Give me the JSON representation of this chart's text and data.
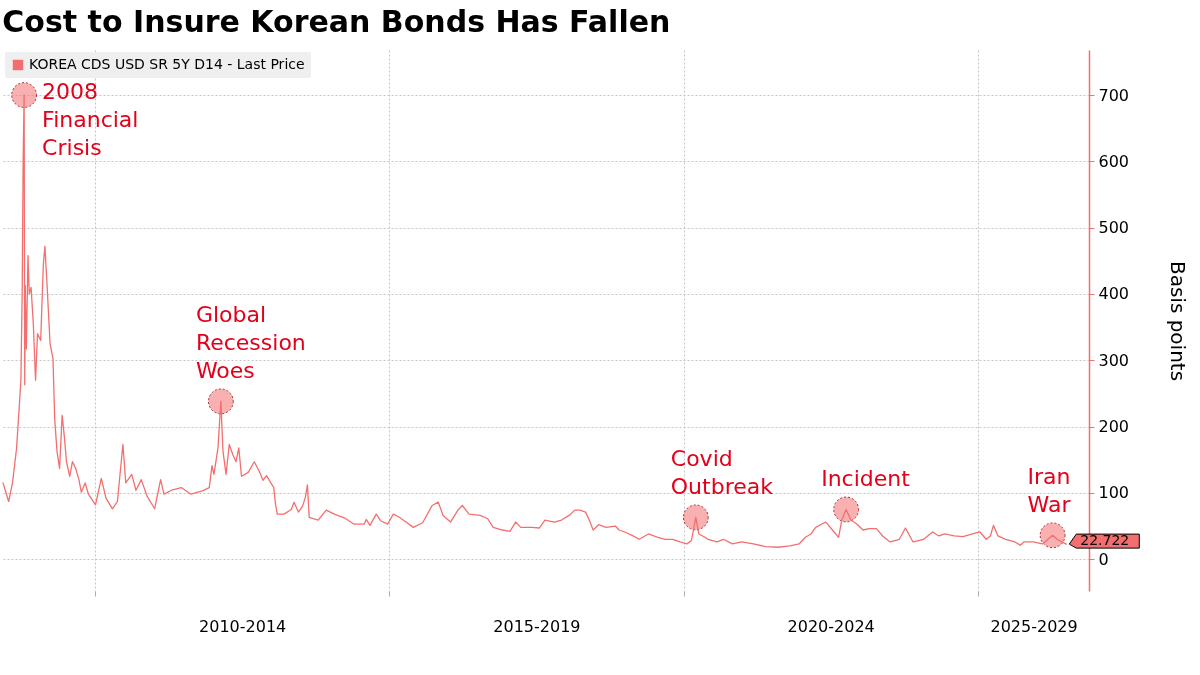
{
  "chart_data": {
    "type": "line",
    "title": "Cost to Insure Korean Bonds Has Fallen",
    "ylabel": "Basis points",
    "x": [
      "2008-06-09",
      "2008-07-14",
      "2008-08-07",
      "2008-09-01",
      "2008-09-20",
      "2008-09-28",
      "2008-10-06",
      "2008-10-12",
      "2008-10-18",
      "2008-10-22",
      "2008-10-25",
      "2008-11-01",
      "2008-11-11",
      "2008-11-19",
      "2008-11-30",
      "2008-12-14",
      "2008-12-28",
      "2009-01-09",
      "2009-01-29",
      "2009-02-14",
      "2009-02-24",
      "2009-03-08",
      "2009-03-28",
      "2009-04-15",
      "2009-04-26",
      "2009-05-10",
      "2009-05-26",
      "2009-06-11",
      "2009-06-25",
      "2009-07-08",
      "2009-07-28",
      "2009-08-14",
      "2009-09-03",
      "2009-09-23",
      "2009-10-08",
      "2009-11-01",
      "2009-11-21",
      "2010-01-04",
      "2010-02-09",
      "2010-03-10",
      "2010-04-19",
      "2010-05-20",
      "2010-06-23",
      "2010-07-11",
      "2010-08-17",
      "2010-09-12",
      "2010-10-15",
      "2010-11-20",
      "2011-01-06",
      "2011-02-12",
      "2011-03-05",
      "2011-04-22",
      "2011-06-20",
      "2011-08-19",
      "2011-10-29",
      "2011-12-11",
      "2011-12-28",
      "2012-01-09",
      "2012-02-03",
      "2012-02-21",
      "2012-03-05",
      "2012-03-24",
      "2012-04-13",
      "2012-05-06",
      "2012-05-25",
      "2012-06-11",
      "2012-06-28",
      "2012-08-09",
      "2012-09-15",
      "2012-10-19",
      "2012-11-08",
      "2012-11-30",
      "2013-01-14",
      "2013-01-25",
      "2013-02-05",
      "2013-03-19",
      "2013-05-03",
      "2013-05-20",
      "2013-06-16",
      "2013-07-12",
      "2013-07-30",
      "2013-08-11",
      "2013-08-22",
      "2013-10-17",
      "2013-12-06",
      "2014-01-25",
      "2014-03-31",
      "2014-05-25",
      "2014-07-30",
      "2014-08-11",
      "2014-09-03",
      "2014-10-12",
      "2014-11-08",
      "2014-12-22",
      "2015-01-26",
      "2015-02-28",
      "2015-04-15",
      "2015-05-30",
      "2015-07-27",
      "2015-09-24",
      "2015-11-01",
      "2015-12-01",
      "2016-01-16",
      "2016-03-02",
      "2016-03-29",
      "2016-05-10",
      "2016-07-18",
      "2016-09-03",
      "2016-10-07",
      "2016-12-03",
      "2017-01-19",
      "2017-02-23",
      "2017-03-27",
      "2017-06-05",
      "2017-07-20",
      "2017-08-24",
      "2017-10-21",
      "2017-12-05",
      "2018-01-21",
      "2018-02-25",
      "2018-03-29",
      "2018-05-03",
      "2018-05-26",
      "2018-06-19",
      "2018-07-23",
      "2018-09-07",
      "2018-11-04",
      "2018-11-27",
      "2019-01-01",
      "2019-02-16",
      "2019-04-01",
      "2019-05-28",
      "2019-07-25",
      "2019-09-10",
      "2019-10-25",
      "2019-12-10",
      "2020-01-21",
      "2020-02-19",
      "2020-03-17",
      "2020-04-05",
      "2020-05-13",
      "2020-06-01",
      "2020-07-27",
      "2020-09-04",
      "2020-10-30",
      "2020-12-26",
      "2021-03-10",
      "2021-05-24",
      "2021-08-09",
      "2021-10-23",
      "2021-12-18",
      "2022-01-26",
      "2022-03-02",
      "2022-03-31",
      "2022-05-08",
      "2022-06-02",
      "2022-07-13",
      "2022-08-20",
      "2022-09-09",
      "2022-10-06",
      "2022-11-04",
      "2022-12-11",
      "2023-01-19",
      "2023-02-26",
      "2023-04-12",
      "2023-05-20",
      "2023-07-06",
      "2023-09-01",
      "2023-10-09",
      "2023-11-25",
      "2024-01-30",
      "2024-03-26",
      "2024-05-03",
      "2024-06-10",
      "2024-08-06",
      "2024-10-01",
      "2024-11-27",
      "2025-01-13",
      "2025-02-21",
      "2025-03-19",
      "2025-04-07",
      "2025-05-05",
      "2025-06-22",
      "2025-08-18",
      "2025-09-21",
      "2025-10-13",
      "2025-12-09",
      "2026-02-05",
      "2026-03-11",
      "2026-04-09",
      "2026-05-07",
      "2026-06-05",
      "2026-07-03"
    ],
    "series": [
      {
        "name": "KOREA CDS USD SR 5Y D14 - Last Price",
        "color": "#f36f6f",
        "values": [
          115,
          87,
          115,
          167,
          238,
          270,
          400,
          600,
          700,
          263,
          413,
          317,
          458,
          400,
          410,
          356,
          270,
          340,
          330,
          443,
          472,
          420,
          325,
          303,
          211,
          163,
          137,
          217,
          184,
          147,
          125,
          147,
          137,
          120,
          101,
          115,
          98,
          82,
          122,
          92,
          76,
          87,
          173,
          115,
          128,
          104,
          120,
          95,
          76,
          120,
          98,
          104,
          108,
          98,
          103,
          108,
          141,
          128,
          168,
          238,
          163,
          128,
          173,
          157,
          147,
          168,
          125,
          131,
          147,
          131,
          119,
          126,
          108,
          83,
          68,
          68,
          75,
          86,
          71,
          80,
          94,
          112,
          63,
          59,
          74,
          68,
          62,
          53,
          53,
          60,
          51,
          68,
          58,
          53,
          68,
          64,
          56,
          48,
          55,
          81,
          86,
          66,
          56,
          74,
          81,
          68,
          66,
          61,
          48,
          44,
          42,
          56,
          48,
          48,
          47,
          59,
          56,
          59,
          66,
          74,
          74,
          71,
          59,
          44,
          52,
          48,
          50,
          44,
          41,
          36,
          30,
          38,
          33,
          30,
          30,
          26,
          23,
          28,
          63,
          38,
          33,
          30,
          26,
          30,
          23,
          26,
          23,
          19,
          18,
          20,
          23,
          33,
          38,
          48,
          53,
          56,
          44,
          33,
          59,
          75,
          59,
          53,
          44,
          46,
          46,
          35,
          26,
          30,
          47,
          26,
          30,
          41,
          35,
          38,
          35,
          34,
          38,
          41,
          30,
          35,
          51,
          35,
          30,
          26,
          21,
          26,
          26,
          23,
          30,
          36,
          30,
          26,
          22.722
        ],
        "value_labels": [
          null,
          null,
          null,
          null,
          null,
          null,
          null,
          null,
          null,
          null,
          null,
          null,
          null,
          null,
          null,
          null,
          null,
          null,
          null,
          null,
          null,
          null,
          null,
          null,
          null,
          null,
          null,
          null,
          null,
          null,
          null,
          null,
          null,
          null,
          null,
          null,
          null,
          null,
          null,
          null,
          null,
          null,
          null,
          null,
          null,
          null,
          null,
          null,
          null,
          null,
          null,
          null,
          null,
          null,
          null,
          null,
          null,
          null,
          null,
          null,
          null,
          null,
          null,
          null,
          null,
          null,
          null,
          null,
          null,
          null,
          null,
          null,
          null,
          null,
          null,
          null,
          null,
          null,
          null,
          null,
          null,
          null,
          null,
          null,
          null,
          null,
          null,
          null,
          null,
          null,
          null,
          null,
          null,
          null,
          null,
          null,
          null,
          null,
          null,
          null,
          null,
          null,
          null,
          null,
          null,
          null,
          null,
          null,
          null,
          null,
          null,
          null,
          null,
          null,
          null,
          null,
          null,
          null,
          null,
          null,
          null,
          null,
          null,
          null,
          null,
          null,
          null,
          null,
          null,
          null,
          null,
          null,
          null,
          null,
          null,
          null,
          null,
          null,
          null,
          null,
          null,
          null,
          null,
          null,
          null,
          null,
          null,
          null,
          null,
          null,
          null,
          null,
          null,
          null,
          null,
          null,
          null,
          null,
          null,
          null,
          null,
          null,
          null,
          null,
          null,
          null,
          null,
          null,
          null,
          null,
          null,
          null,
          null,
          null,
          null,
          null,
          null,
          null,
          null,
          null,
          null,
          null,
          null,
          null,
          null,
          null,
          null,
          null,
          null,
          null,
          null,
          null,
          "22.722"
        ]
      }
    ],
    "xlim": [
      "2008-06-09",
      "2026-11-21"
    ],
    "xticks": [
      {
        "value": "2010-01-01",
        "label": null
      },
      {
        "value": "2012-07-02",
        "label": "2010-2014"
      },
      {
        "value": "2015-01-01",
        "label": null
      },
      {
        "value": "2017-07-02",
        "label": "2015-2019"
      },
      {
        "value": "2020-01-01",
        "label": null
      },
      {
        "value": "2022-07-02",
        "label": "2020-2024"
      },
      {
        "value": "2025-01-01",
        "label": null
      },
      {
        "value": "2025-12-12",
        "label": "2025-2029"
      }
    ],
    "ylim": [
      -48,
      768
    ],
    "yticks": [
      0,
      100,
      200,
      300,
      400,
      500,
      600,
      700
    ],
    "grid": true,
    "legend": "top left",
    "annotations": [
      {
        "text": "2008 Financial Crisis",
        "x": "2008-10-18",
        "y": 700
      },
      {
        "text": "Global Recession Woes",
        "x": "2012-02-21",
        "y": 238
      },
      {
        "text": "Covid Outbreak",
        "x": "2020-03-17",
        "y": 63
      },
      {
        "text": "Incident",
        "x": "2022-10-06",
        "y": 75
      },
      {
        "text": "Iran War",
        "x": "2026-04-09",
        "y": 36
      }
    ]
  }
}
